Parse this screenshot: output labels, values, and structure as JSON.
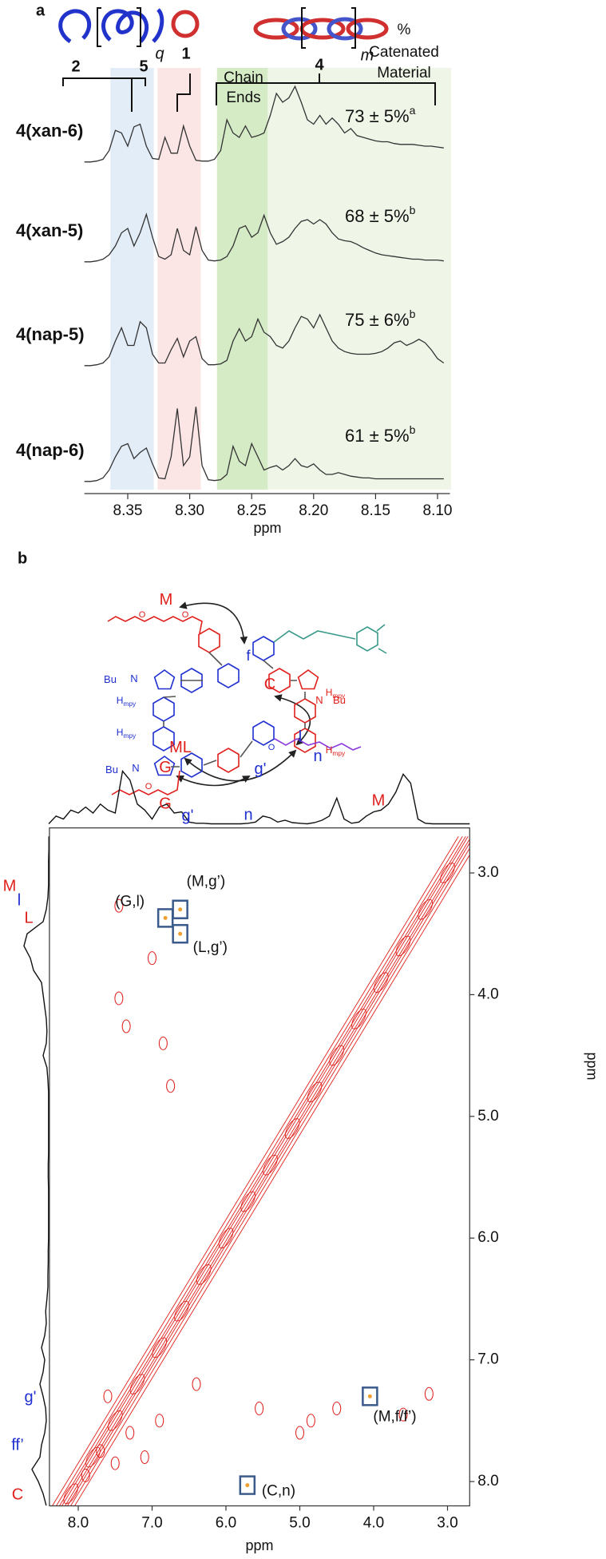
{
  "chart_data": [
    {
      "panel": "a",
      "type": "line",
      "header_labels": [
        "2",
        "5",
        "q",
        "1",
        "Chain",
        "Ends",
        "4",
        "m",
        "%",
        "Catenated",
        "Material"
      ],
      "x": [
        8.385,
        8.38,
        8.375,
        8.37,
        8.365,
        8.36,
        8.355,
        8.35,
        8.345,
        8.34,
        8.335,
        8.33,
        8.325,
        8.32,
        8.315,
        8.31,
        8.305,
        8.3,
        8.295,
        8.29,
        8.285,
        8.28,
        8.275,
        8.27,
        8.265,
        8.26,
        8.255,
        8.25,
        8.245,
        8.24,
        8.235,
        8.23,
        8.225,
        8.22,
        8.215,
        8.21,
        8.205,
        8.2,
        8.195,
        8.19,
        8.185,
        8.18,
        8.175,
        8.17,
        8.165,
        8.16,
        8.155,
        8.15,
        8.145,
        8.14,
        8.135,
        8.13,
        8.125,
        8.12,
        8.115,
        8.11,
        8.105,
        8.1,
        8.095
      ],
      "color": "#333333",
      "series": [
        {
          "name": "4(xan-6)",
          "catenated": "73 ± 5%",
          "footnote": "a",
          "values": [
            0.02,
            0.02,
            0.03,
            0.05,
            0.15,
            0.38,
            0.35,
            0.2,
            0.42,
            0.45,
            0.2,
            0.06,
            0.05,
            0.3,
            0.12,
            0.12,
            0.43,
            0.2,
            0.04,
            0.03,
            0.03,
            0.05,
            0.15,
            0.5,
            0.35,
            0.3,
            0.43,
            0.3,
            0.32,
            0.35,
            0.55,
            0.8,
            0.7,
            0.75,
            0.88,
            0.7,
            0.5,
            0.45,
            0.55,
            0.45,
            0.52,
            0.45,
            0.35,
            0.4,
            0.32,
            0.3,
            0.28,
            0.26,
            0.25,
            0.25,
            0.23,
            0.22,
            0.22,
            0.22,
            0.21,
            0.2,
            0.2,
            0.19,
            0.18
          ]
        },
        {
          "name": "4(xan-5)",
          "catenated": "68 ± 5%",
          "footnote": "b",
          "values": [
            0.02,
            0.02,
            0.03,
            0.05,
            0.1,
            0.2,
            0.35,
            0.4,
            0.2,
            0.35,
            0.56,
            0.3,
            0.08,
            0.05,
            0.1,
            0.4,
            0.15,
            0.1,
            0.42,
            0.15,
            0.04,
            0.03,
            0.04,
            0.08,
            0.2,
            0.4,
            0.43,
            0.3,
            0.35,
            0.55,
            0.35,
            0.22,
            0.25,
            0.3,
            0.4,
            0.48,
            0.5,
            0.45,
            0.5,
            0.45,
            0.35,
            0.28,
            0.26,
            0.25,
            0.22,
            0.18,
            0.15,
            0.12,
            0.1,
            0.09,
            0.08,
            0.07,
            0.06,
            0.05,
            0.05,
            0.04,
            0.04,
            0.04,
            0.03
          ]
        },
        {
          "name": "4(nap-5)",
          "catenated": "75 ± 6%",
          "footnote": "b",
          "values": [
            0.02,
            0.02,
            0.03,
            0.05,
            0.12,
            0.3,
            0.45,
            0.25,
            0.25,
            0.52,
            0.45,
            0.15,
            0.05,
            0.05,
            0.2,
            0.33,
            0.12,
            0.3,
            0.35,
            0.1,
            0.03,
            0.03,
            0.04,
            0.08,
            0.3,
            0.44,
            0.3,
            0.35,
            0.55,
            0.4,
            0.35,
            0.25,
            0.22,
            0.3,
            0.45,
            0.58,
            0.55,
            0.45,
            0.6,
            0.45,
            0.3,
            0.22,
            0.18,
            0.16,
            0.15,
            0.15,
            0.15,
            0.16,
            0.18,
            0.22,
            0.28,
            0.3,
            0.25,
            0.28,
            0.32,
            0.28,
            0.2,
            0.1,
            0.05
          ]
        },
        {
          "name": "4(nap-6)",
          "catenated": "61 ± 5%",
          "footnote": "b",
          "values": [
            0.02,
            0.02,
            0.03,
            0.06,
            0.15,
            0.3,
            0.42,
            0.45,
            0.28,
            0.35,
            0.4,
            0.22,
            0.06,
            0.05,
            0.3,
            0.85,
            0.2,
            0.3,
            0.87,
            0.2,
            0.04,
            0.03,
            0.04,
            0.1,
            0.42,
            0.25,
            0.2,
            0.45,
            0.3,
            0.15,
            0.18,
            0.2,
            0.15,
            0.2,
            0.28,
            0.2,
            0.18,
            0.22,
            0.15,
            0.1,
            0.1,
            0.12,
            0.1,
            0.08,
            0.07,
            0.06,
            0.06,
            0.05,
            0.05,
            0.05,
            0.05,
            0.05,
            0.05,
            0.05,
            0.05,
            0.05,
            0.05,
            0.05,
            0.05
          ]
        }
      ],
      "regions": [
        {
          "xlim": [
            8.364,
            8.329
          ],
          "color": "#e3edf8"
        },
        {
          "xlim": [
            8.326,
            8.291
          ],
          "color": "#fbe5e5"
        },
        {
          "xlim": [
            8.278,
            8.237
          ],
          "color": "#d5ebc6"
        },
        {
          "xlim": [
            8.237,
            8.089
          ],
          "color": "#eff6e8"
        }
      ],
      "xlim": [
        8.385,
        8.09
      ],
      "xticks": [
        8.35,
        {
          "value": 8.3,
          "label": "8.30"
        },
        8.25,
        {
          "value": 8.2,
          "label": "8.20"
        },
        8.15,
        {
          "value": 8.1,
          "label": "8.10"
        }
      ],
      "xlabel": "ppm"
    },
    {
      "panel": "b",
      "type": "contour",
      "structure_labels": [
        {
          "text": "M",
          "color": "#e0201c"
        },
        {
          "text": "f",
          "color": "#1f2fd0"
        },
        {
          "text": "Bu",
          "color": "#1f2fd0"
        },
        {
          "text": "N",
          "color": "#1f2fd0"
        },
        {
          "text": "H",
          "sub": "mpy",
          "color": "#1f2fd0"
        },
        {
          "text": "H",
          "sub": "mpy",
          "color": "#1f2fd0"
        },
        {
          "text": "Bu",
          "color": "#1f2fd0"
        },
        {
          "text": "N",
          "color": "#1f2fd0"
        },
        {
          "text": "C",
          "color": "#e0201c"
        },
        {
          "text": "N",
          "color": "#e0201c"
        },
        {
          "text": "Bu",
          "color": "#e0201c"
        },
        {
          "text": "H",
          "sub": "mpy",
          "color": "#e0201c"
        },
        {
          "text": "H",
          "sub": "mpy",
          "color": "#e0201c"
        },
        {
          "text": "ML",
          "color": "#e0201c"
        },
        {
          "text": "G",
          "color": "#e0201c"
        },
        {
          "text": "g'",
          "color": "#1f2fd0"
        },
        {
          "text": "l",
          "color": "#1f2fd0"
        },
        {
          "text": "n",
          "color": "#1f2fd0"
        },
        {
          "text": "O",
          "color": "#e0201c"
        },
        {
          "text": "O",
          "color": "#e0201c"
        },
        {
          "text": "O",
          "color": "#e0201c"
        },
        {
          "text": "O",
          "color": "#1f2fd0"
        }
      ],
      "top_labels": [
        {
          "text": "G",
          "color": "#e0201c"
        },
        {
          "text": "g'",
          "color": "#1f2fd0"
        },
        {
          "text": "n",
          "color": "#1f2fd0"
        },
        {
          "text": "M",
          "color": "#e0201c"
        }
      ],
      "left_labels": [
        {
          "text": "M",
          "color": "#e0201c"
        },
        {
          "text": "l",
          "color": "#1f2fd0"
        },
        {
          "text": "L",
          "color": "#e0201c"
        },
        {
          "text": "g'",
          "color": "#1f2fd0"
        },
        {
          "text": "ff’",
          "color": "#1f2fd0"
        },
        {
          "text": "C",
          "color": "#e0201c"
        }
      ],
      "projection_x": [
        8.4,
        8.3,
        8.2,
        8.1,
        8.0,
        7.9,
        7.8,
        7.7,
        7.6,
        7.5,
        7.4,
        7.3,
        7.2,
        7.1,
        7.0,
        6.9,
        6.8,
        6.7,
        6.6,
        6.5,
        6.4,
        6.3,
        6.2,
        6.1,
        6.0,
        5.9,
        5.8,
        5.7,
        5.6,
        5.5,
        5.4,
        5.3,
        5.2,
        5.1,
        5.0,
        4.9,
        4.8,
        4.7,
        4.6,
        4.5,
        4.4,
        4.3,
        4.2,
        4.1,
        4.0,
        3.9,
        3.8,
        3.7,
        3.6,
        3.5,
        3.4,
        3.3,
        3.2,
        3.1,
        3.0,
        2.9,
        2.8,
        2.7
      ],
      "top_trace": [
        0.02,
        0.15,
        0.1,
        0.25,
        0.2,
        0.3,
        0.2,
        0.35,
        0.25,
        0.2,
        0.9,
        0.75,
        0.35,
        0.25,
        0.1,
        0.3,
        0.35,
        0.2,
        0.22,
        0.05,
        0.03,
        0.03,
        0.02,
        0.02,
        0.02,
        0.02,
        0.02,
        0.03,
        0.05,
        0.15,
        0.12,
        0.05,
        0.08,
        0.04,
        0.03,
        0.02,
        0.04,
        0.08,
        0.15,
        0.45,
        0.1,
        0.03,
        0.05,
        0.15,
        0.22,
        0.25,
        0.35,
        0.55,
        0.85,
        0.7,
        0.1,
        0.03,
        0.02,
        0.02,
        0.02,
        0.02,
        0.02,
        0.02
      ],
      "left_trace": [
        0.02,
        0.05,
        0.1,
        0.2,
        0.35,
        0.55,
        0.3,
        0.25,
        0.15,
        0.1,
        0.12,
        0.2,
        0.3,
        0.2,
        0.15,
        0.25,
        0.15,
        0.1,
        0.12,
        0.08,
        0.05,
        0.05,
        0.04,
        0.04,
        0.03,
        0.03,
        0.03,
        0.03,
        0.03,
        0.04,
        0.04,
        0.03,
        0.03,
        0.03,
        0.03,
        0.03,
        0.03,
        0.05,
        0.08,
        0.2,
        0.1,
        0.08,
        0.1,
        0.15,
        0.2,
        0.25,
        0.5,
        0.6,
        0.8,
        0.7,
        0.2,
        0.1,
        0.05,
        0.03,
        0.03,
        0.03,
        0.02,
        0.02
      ],
      "color": "#e0201c",
      "peaks": {
        "x": [
          7.45,
          7.0,
          7.45,
          7.35,
          6.75,
          6.85,
          5.55,
          4.85,
          4.5,
          3.6,
          3.25,
          7.9,
          7.7,
          7.5,
          7.3,
          7.1,
          6.9,
          7.6,
          6.4,
          5.0
        ],
        "y": [
          3.27,
          3.7,
          4.03,
          4.26,
          4.75,
          4.4,
          7.4,
          7.5,
          7.4,
          7.45,
          7.28,
          7.95,
          7.75,
          7.85,
          7.6,
          7.8,
          7.5,
          7.3,
          7.2,
          7.6
        ]
      },
      "boxes": [
        {
          "label": "(G,l)",
          "x": 6.82,
          "y": 3.37
        },
        {
          "label": "(M,g’)",
          "x": 6.62,
          "y": 3.3
        },
        {
          "label": "(L,g’)",
          "x": 6.62,
          "y": 3.5
        },
        {
          "label": "(C,n)",
          "x": 5.71,
          "y": 8.03
        },
        {
          "label": "(M,f/f’)",
          "x": 4.05,
          "y": 7.3
        }
      ],
      "xlim": [
        8.39,
        2.7
      ],
      "ylim": [
        2.63,
        8.2
      ],
      "xticks": [
        {
          "value": 8,
          "label": "8.0"
        },
        {
          "value": 7,
          "label": "7.0"
        },
        {
          "value": 6,
          "label": "6.0"
        },
        {
          "value": 5,
          "label": "5.0"
        },
        {
          "value": 4,
          "label": "4.0"
        },
        {
          "value": 3,
          "label": "3.0"
        }
      ],
      "yticks": [
        {
          "value": 3,
          "label": "3.0"
        },
        {
          "value": 4,
          "label": "4.0"
        },
        {
          "value": 5,
          "label": "5.0"
        },
        {
          "value": 6,
          "label": "6.0"
        },
        {
          "value": 7,
          "label": "7.0"
        },
        {
          "value": 8,
          "label": "8.0"
        }
      ],
      "xlabel": "ppm",
      "ylabel": "ppm"
    }
  ]
}
